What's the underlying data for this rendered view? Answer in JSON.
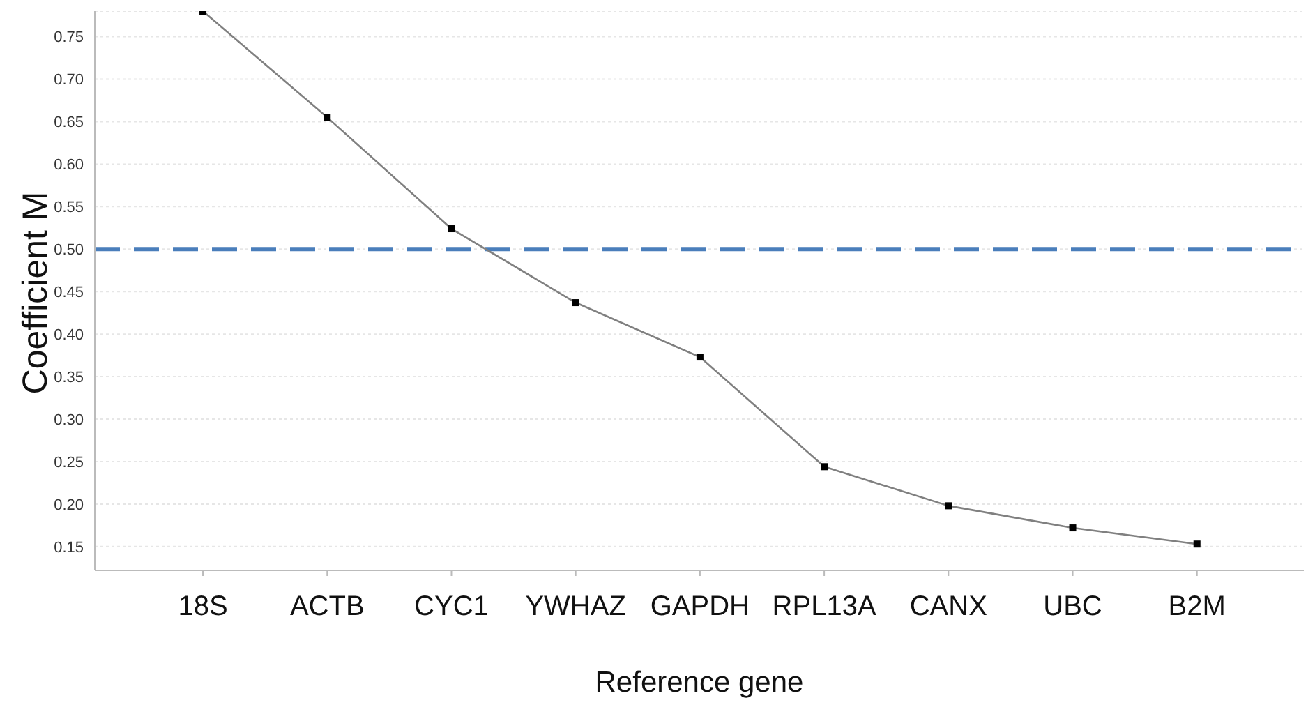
{
  "chart_data": {
    "type": "line",
    "xlabel": "Reference gene",
    "ylabel": "Coefficient M",
    "categories": [
      "18S",
      "ACTB",
      "CYC1",
      "YWHAZ",
      "GAPDH",
      "RPL13A",
      "CANX",
      "UBC",
      "B2M"
    ],
    "series": [
      {
        "color": "#808080",
        "values": [
          0.78,
          0.655,
          0.524,
          0.437,
          0.373,
          0.244,
          0.198,
          0.172,
          0.153
        ]
      }
    ],
    "ylim": [
      0.122,
      0.78
    ],
    "yticks": [
      0.15,
      {
        "value": 0.2,
        "label": "0.20"
      },
      0.25,
      {
        "value": 0.3,
        "label": "0.30"
      },
      0.35,
      {
        "value": 0.4,
        "label": "0.40"
      },
      0.45,
      {
        "value": 0.5,
        "label": "0.50"
      },
      0.55,
      {
        "value": 0.6,
        "label": "0.60"
      },
      0.65,
      {
        "value": 0.7,
        "label": "0.70"
      },
      0.75
    ],
    "ref_lines": [
      {
        "axis": "y",
        "value": 0.5,
        "color": "#4a7ebb",
        "line_style": "dashed"
      }
    ],
    "grid": "y",
    "marker": "square",
    "line_style": "solid"
  }
}
